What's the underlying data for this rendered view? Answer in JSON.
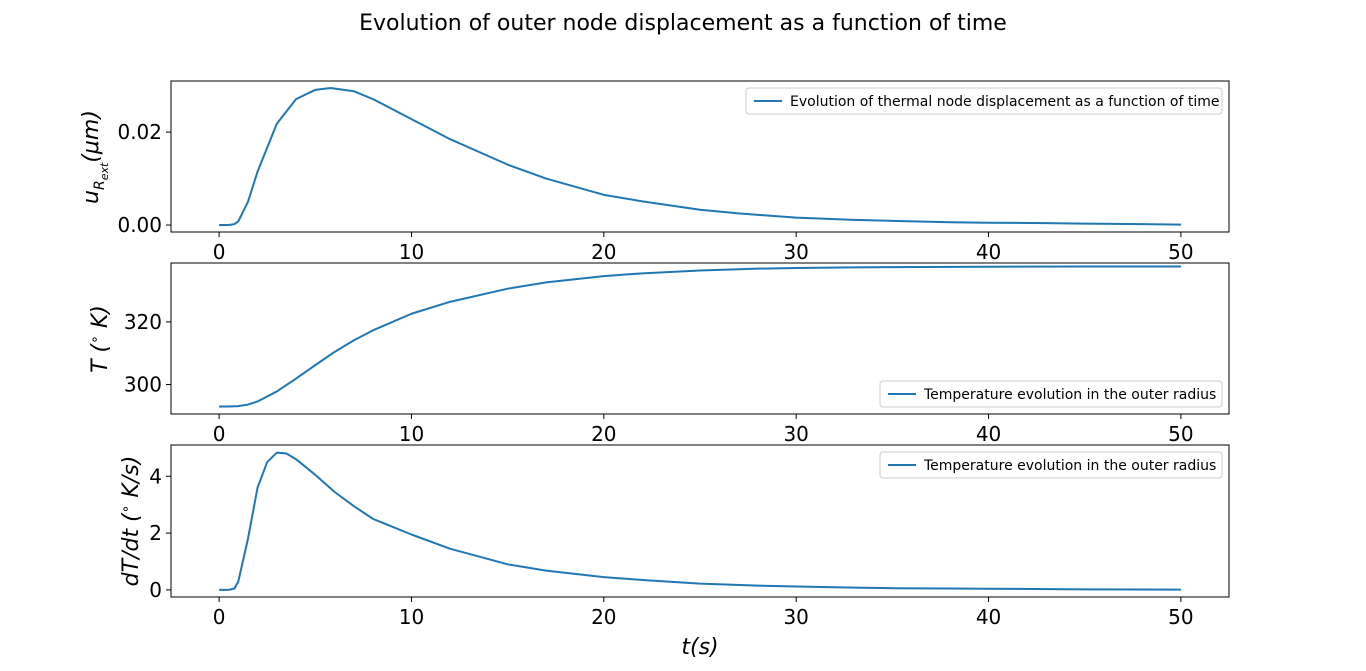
{
  "figure": {
    "title": "Evolution of outer node displacement as a function of time"
  },
  "chart_data": [
    {
      "type": "line",
      "ylabel": "u_{R_ext}(μm)",
      "ylim": [
        -0.0015,
        0.031
      ],
      "xlim": [
        -2.5,
        52.5
      ],
      "xticks": [
        0,
        10,
        20,
        30,
        40,
        50
      ],
      "yticks": [
        0.0,
        0.02
      ],
      "ytick_labels": [
        "0.00",
        "0.02"
      ],
      "legend": "top-right",
      "series": [
        {
          "name": "Evolution of thermal node displacement as a function of time",
          "x": [
            0,
            0.5,
            0.8,
            1,
            1.5,
            2,
            3,
            4,
            5,
            5.8,
            7,
            8,
            10,
            12,
            15,
            17,
            20,
            22,
            25,
            27,
            30,
            33,
            35,
            38,
            40,
            43,
            45,
            48,
            50
          ],
          "y": [
            0,
            0,
            0.0002,
            0.0008,
            0.005,
            0.0115,
            0.0218,
            0.0271,
            0.0291,
            0.0295,
            0.0288,
            0.0271,
            0.0228,
            0.0185,
            0.013,
            0.01,
            0.0065,
            0.0051,
            0.0033,
            0.0025,
            0.0016,
            0.0011,
            0.0009,
            0.0006,
            0.0005,
            0.0004,
            0.0003,
            0.0002,
            0.0001
          ]
        }
      ]
    },
    {
      "type": "line",
      "ylabel": "T (°K)",
      "ylim": [
        290.6,
        338.8
      ],
      "xlim": [
        -2.5,
        52.5
      ],
      "xticks": [
        0,
        10,
        20,
        30,
        40,
        50
      ],
      "yticks": [
        300,
        320
      ],
      "ytick_labels": [
        "300",
        "320"
      ],
      "legend": "bottom-right",
      "series": [
        {
          "name": "Temperature evolution in the outer radius",
          "x": [
            0,
            0.5,
            1,
            1.5,
            2,
            3,
            4,
            5,
            6,
            7,
            8,
            10,
            12,
            15,
            17,
            20,
            22,
            25,
            28,
            30,
            33,
            35,
            40,
            45,
            50
          ],
          "y": [
            293,
            293,
            293.1,
            293.6,
            294.6,
            297.8,
            301.9,
            306.2,
            310.4,
            314.1,
            317.3,
            322.6,
            326.4,
            330.6,
            332.6,
            334.6,
            335.5,
            336.4,
            337.0,
            337.2,
            337.4,
            337.5,
            337.6,
            337.7,
            337.7
          ]
        }
      ]
    },
    {
      "type": "line",
      "ylabel": "dT/dt (°K/s)",
      "ylim": [
        -0.25,
        5.1
      ],
      "xlim": [
        -2.5,
        52.5
      ],
      "xticks": [
        0,
        10,
        20,
        30,
        40,
        50
      ],
      "yticks": [
        0,
        2,
        4
      ],
      "ytick_labels": [
        "0",
        "2",
        "4"
      ],
      "xlabel": "t(s)",
      "legend": "top-right",
      "series": [
        {
          "name": "Temperature evolution in the outer radius",
          "x": [
            0,
            0.5,
            0.8,
            1,
            1.5,
            2,
            2.5,
            3,
            3.5,
            4,
            5,
            6,
            7,
            8,
            10,
            12,
            15,
            17,
            20,
            22,
            25,
            28,
            30,
            33,
            35,
            38,
            40,
            45,
            50
          ],
          "y": [
            0,
            0,
            0.05,
            0.3,
            1.8,
            3.6,
            4.5,
            4.83,
            4.8,
            4.6,
            4.05,
            3.45,
            2.95,
            2.5,
            1.95,
            1.45,
            0.9,
            0.68,
            0.45,
            0.35,
            0.22,
            0.15,
            0.12,
            0.08,
            0.06,
            0.05,
            0.04,
            0.02,
            0.01
          ]
        }
      ]
    }
  ]
}
